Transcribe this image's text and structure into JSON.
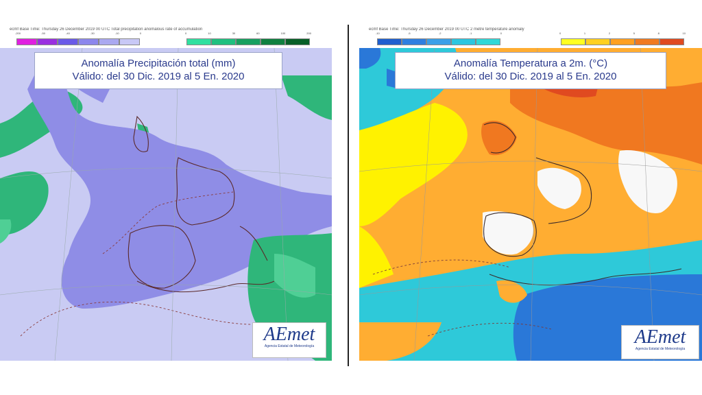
{
  "left_map": {
    "header": "ecmf  Base Time: Thursday 26 December 2019 00 UTC Total precipitation anomalous rate of accumulation",
    "title_line1": "Anomalía Precipitación total (mm)",
    "title_line2": "Válido: del 30 Dic. 2019 al 5 En. 2020",
    "legend_negative_colors": [
      "#e020e0",
      "#9a2fe0",
      "#6a5ae8",
      "#8c86ec",
      "#aaa8f0",
      "#c8c8f6"
    ],
    "legend_positive_colors": [
      "#30e0a0",
      "#20c080",
      "#18a060",
      "#108040",
      "#086028"
    ],
    "legend_ticks_negative": [
      "-200",
      "-50",
      "-40",
      "-30",
      "-10",
      "0"
    ],
    "legend_ticks_positive": [
      "0",
      "10",
      "30",
      "60",
      "100",
      "200"
    ],
    "colors": {
      "dry_light": "#c9cbf3",
      "dry_mid": "#8f8de6",
      "wet": "#2fb67a",
      "wet_light": "#4fcf95"
    }
  },
  "right_map": {
    "header": "ecmf  Base Time: Thursday 26 December 2019 00 UTC 2 metre temperature anomaly",
    "title_line1": "Anomalía Temperatura a 2m. (°C)",
    "title_line2": "Válido: del 30 Dic. 2019 al 5 En. 2020",
    "legend_negative_colors": [
      "#1f5fcf",
      "#2f7fe0",
      "#3aa0e8",
      "#2cc6e0",
      "#30d8d8"
    ],
    "legend_positive_colors": [
      "#ffff20",
      "#ffd020",
      "#ffa020",
      "#f07a20",
      "#e04a20"
    ],
    "legend_ticks_negative": [
      "-10",
      "-5",
      "-2",
      "-1",
      "0"
    ],
    "legend_ticks_positive": [
      "0",
      "1",
      "2",
      "5",
      "8",
      "10"
    ],
    "colors": {
      "sea_cold": "#2a78d8",
      "cyan": "#2ec9d9",
      "yellow": "#fff200",
      "orange": "#ffad32",
      "deep_orange": "#f07820"
    }
  },
  "logo": {
    "mark": "AEmet",
    "subtitle": "Agencia Estatal de Meteorología"
  }
}
